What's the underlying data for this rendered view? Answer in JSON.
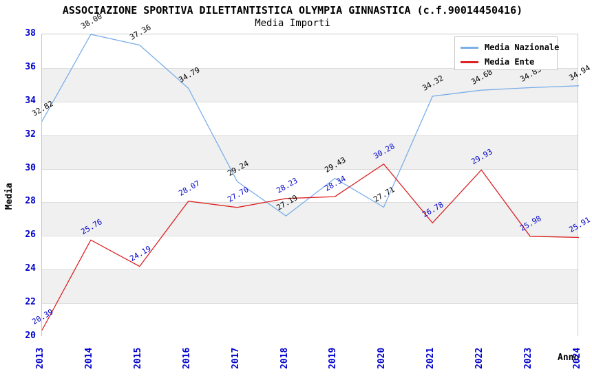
{
  "title": "ASSOCIAZIONE SPORTIVA DILETTANTISTICA OLYMPIA GINNASTICA (c.f.90014450416)",
  "subtitle": "Media Importi",
  "axes": {
    "x_label": "Anno",
    "y_label": "Media",
    "y_min": 20,
    "y_max": 38,
    "y_step": 2
  },
  "legend": {
    "items": [
      {
        "label": "Media Nazionale",
        "color": "#7aaee8"
      },
      {
        "label": "Media Ente",
        "color": "#dc2222"
      }
    ]
  },
  "colors": {
    "tick_text": "#0000cc",
    "band_gray": "#f0f0f0",
    "gridline": "#dcdcdc",
    "plot_border": "#c8c8c8",
    "national_line": "#7aaee8",
    "ente_line": "#dc2222",
    "national_label": "#000000",
    "ente_label": "#0000cc"
  },
  "chart_data": {
    "type": "line",
    "title": "ASSOCIAZIONE SPORTIVA DILETTANTISTICA OLYMPIA GINNASTICA (c.f.90014450416)",
    "subtitle": "Media Importi",
    "xlabel": "Anno",
    "ylabel": "Media",
    "ylim": [
      20,
      38
    ],
    "y_tick_step": 2,
    "grid": "horizontal",
    "alternating_bands": true,
    "legend_position": "top-right",
    "categories": [
      "2013",
      "2014",
      "2015",
      "2016",
      "2017",
      "2018",
      "2019",
      "2020",
      "2021",
      "2022",
      "2023",
      "2024"
    ],
    "series": [
      {
        "name": "Media Nazionale",
        "color": "#7aaee8",
        "label_color": "#000000",
        "values": [
          32.82,
          38.0,
          37.36,
          34.79,
          29.24,
          27.19,
          29.43,
          27.71,
          34.32,
          34.68,
          34.83,
          34.94
        ]
      },
      {
        "name": "Media Ente",
        "color": "#dc2222",
        "label_color": "#0000cc",
        "values": [
          20.39,
          25.76,
          24.19,
          28.07,
          27.7,
          28.23,
          28.34,
          30.28,
          26.78,
          29.93,
          25.98,
          25.91
        ]
      }
    ]
  }
}
